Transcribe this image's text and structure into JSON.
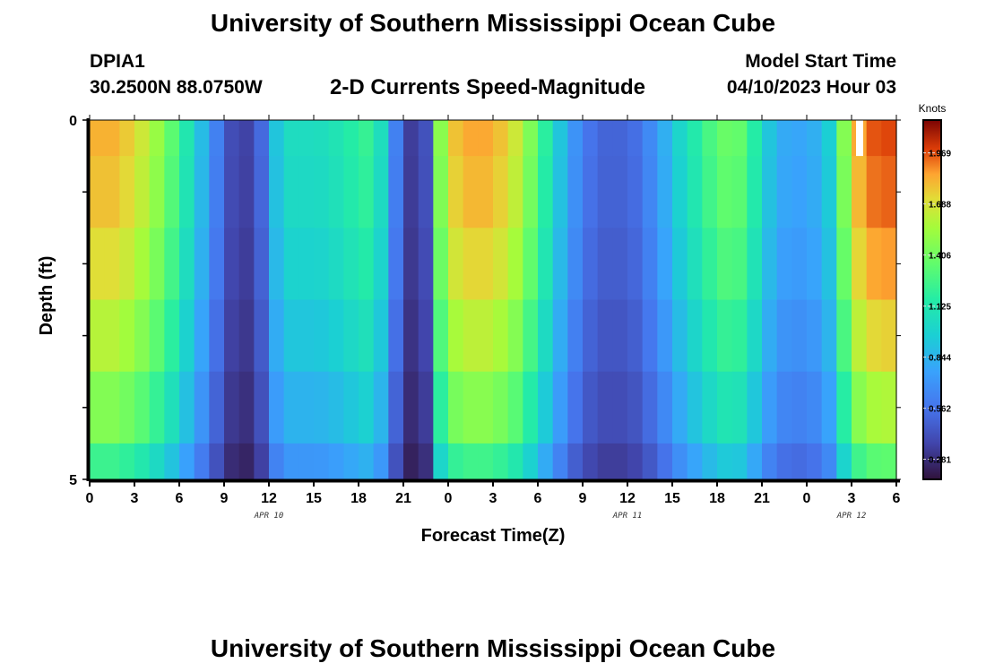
{
  "header": {
    "title": "University of Southern Mississippi Ocean Cube",
    "station_id": "DPIA1",
    "coordinates": "30.2500N  88.0750W",
    "subtitle": "2-D Currents Speed-Magnitude",
    "model_start_label": "Model Start Time",
    "model_start_value": "04/10/2023 Hour 03"
  },
  "footer": {
    "title": "University of Southern Mississippi Ocean Cube"
  },
  "chart_data": {
    "type": "heatmap",
    "title": "2-D Currents Speed-Magnitude",
    "xlabel": "Forecast Time(Z)",
    "ylabel": "Depth (ft)",
    "x_hours": [
      0,
      1,
      2,
      3,
      4,
      5,
      6,
      7,
      8,
      9,
      10,
      11,
      12,
      13,
      14,
      15,
      16,
      17,
      18,
      19,
      20,
      21,
      22,
      23,
      24,
      25,
      26,
      27,
      28,
      29,
      30,
      31,
      32,
      33,
      34,
      35,
      36,
      37,
      38,
      39,
      40,
      41,
      42,
      43,
      44,
      45,
      46,
      47,
      48,
      49,
      50,
      51,
      52,
      53
    ],
    "xlim": [
      0,
      54
    ],
    "x_tick_positions": [
      0,
      3,
      6,
      9,
      12,
      15,
      18,
      21,
      24,
      27,
      30,
      33,
      36,
      39,
      42,
      45,
      48,
      51,
      54
    ],
    "x_tick_labels": [
      "0",
      "3",
      "6",
      "9",
      "12",
      "15",
      "18",
      "21",
      "0",
      "3",
      "6",
      "9",
      "12",
      "15",
      "18",
      "21",
      "0",
      "3",
      "6"
    ],
    "date_labels": [
      {
        "text": "APR 10",
        "hour": 12
      },
      {
        "text": "APR 11",
        "hour": 36
      },
      {
        "text": "APR 12",
        "hour": 51
      }
    ],
    "ylim": [
      0,
      5
    ],
    "y_tick_labels": [
      {
        "value": 0,
        "text": "0"
      },
      {
        "value": 5,
        "text": "5"
      }
    ],
    "depth_layers": [
      0.25,
      1.25,
      2.25,
      3.25,
      4.25,
      4.75
    ],
    "layer_bounds": [
      0,
      0.5,
      1.5,
      2.5,
      3.5,
      4.5,
      5
    ],
    "speed_profile_surface": [
      1.82,
      1.82,
      1.76,
      1.66,
      1.52,
      1.34,
      1.12,
      0.88,
      0.62,
      0.4,
      0.36,
      0.52,
      0.92,
      1.05,
      1.05,
      1.06,
      1.1,
      1.16,
      1.22,
      1.06,
      0.62,
      0.34,
      0.42,
      1.48,
      1.78,
      1.84,
      1.84,
      1.78,
      1.66,
      1.44,
      1.18,
      0.92,
      0.7,
      0.56,
      0.5,
      0.5,
      0.54,
      0.66,
      0.82,
      1.0,
      1.14,
      1.28,
      1.38,
      1.36,
      1.16,
      0.92,
      0.8,
      0.78,
      0.82,
      0.96,
      1.46,
      1.84,
      1.96,
      1.98
    ],
    "depth_factors": [
      1.0,
      0.98,
      0.94,
      0.88,
      0.8,
      0.68
    ],
    "colorbar": {
      "unit": "Knots",
      "min": 0.17,
      "max": 2.15,
      "ticks": [
        "1.969",
        "1.688",
        "1.406",
        "1.125",
        "0.844",
        "0.562",
        "0.281"
      ]
    }
  }
}
